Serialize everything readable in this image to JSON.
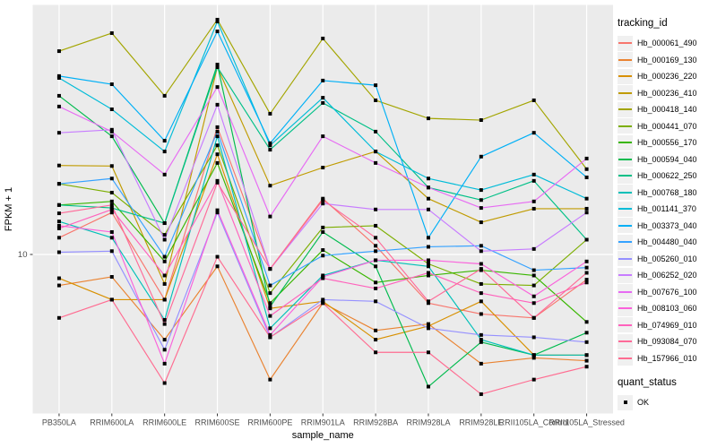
{
  "figure": {
    "panel_bg": "#EBEBEB",
    "grid_color": "#FFFFFF",
    "tick_text_color": "#4D4D4D",
    "axis_title_color": "#000000",
    "point_color": "#000000"
  },
  "axes": {
    "x_title": "sample_name",
    "y_title": "FPKM + 1",
    "y_tick_label": "10"
  },
  "legend": {
    "tracking_title": "tracking_id",
    "quant_title": "quant_status",
    "quant_ok_label": "OK"
  },
  "chart_data": {
    "type": "line",
    "title": "",
    "xlabel": "sample_name",
    "ylabel": "FPKM + 1",
    "y_scale": "log10",
    "y_ticks": [
      10
    ],
    "ylim": [
      2.4,
      95
    ],
    "grid": {
      "vertical": "per-category",
      "horizontal_at": [
        10
      ]
    },
    "legend_position": "right",
    "point_marker": {
      "shape": "square",
      "color": "#000000",
      "legend_label": "OK"
    },
    "categories": [
      "PB350LA",
      "RRIM600LA",
      "RRIM600LE",
      "RRIM600SE",
      "RRIM600PE",
      "RRIM901LA",
      "RRIM928BA",
      "RRIM928LA",
      "RRIM928LE",
      "RRII105LA_Control",
      "RRII105LA_Stressed"
    ],
    "series": [
      {
        "name": "Hb_000061_490",
        "color": "#F8766D",
        "values": [
          11.6,
          14.5,
          6.7,
          30.9,
          8.8,
          16.4,
          10.8,
          6.5,
          5.9,
          5.7,
          8.0
        ]
      },
      {
        "name": "Hb_000169_130",
        "color": "#EA8331",
        "values": [
          7.6,
          8.2,
          4.7,
          9.0,
          3.3,
          6.5,
          5.1,
          5.4,
          3.8,
          4.0,
          3.9
        ]
      },
      {
        "name": "Hb_000236_220",
        "color": "#D89000",
        "values": [
          8.1,
          6.7,
          6.7,
          24.3,
          6.2,
          6.6,
          4.7,
          5.3,
          6.6,
          4.1,
          4.1
        ]
      },
      {
        "name": "Hb_000236_410",
        "color": "#C09B00",
        "values": [
          22.0,
          21.9,
          7.7,
          52.6,
          18.4,
          21.6,
          24.9,
          16.4,
          13.3,
          15.0,
          15.0
        ]
      },
      {
        "name": "Hb_000418_140",
        "color": "#A3A500",
        "values": [
          60.6,
          71.1,
          40.8,
          80.1,
          34.8,
          67.8,
          39.2,
          33.4,
          32.9,
          39.2,
          21.3
        ]
      },
      {
        "name": "Hb_000441_070",
        "color": "#7CAE00",
        "values": [
          18.7,
          17.3,
          11.9,
          26.3,
          7.1,
          12.7,
          12.9,
          9.2,
          7.7,
          7.6,
          11.4
        ]
      },
      {
        "name": "Hb_000556_170",
        "color": "#39B600",
        "values": [
          15.5,
          16.0,
          9.4,
          22.5,
          6.5,
          10.4,
          7.8,
          8.3,
          8.7,
          8.3,
          5.5
        ]
      },
      {
        "name": "Hb_000594_040",
        "color": "#00BB4E",
        "values": [
          40.8,
          28.5,
          13.2,
          53.8,
          6.3,
          12.2,
          9.0,
          3.1,
          4.6,
          4.1,
          5.0
        ]
      },
      {
        "name": "Hb_000622_250",
        "color": "#00C087",
        "values": [
          15.5,
          15.1,
          13.2,
          52.6,
          25.3,
          38.3,
          29.7,
          18.1,
          16.2,
          19.2,
          11.4
        ]
      },
      {
        "name": "Hb_000768_180",
        "color": "#00C0B8",
        "values": [
          13.4,
          11.6,
          5.6,
          28.5,
          5.2,
          8.3,
          9.5,
          9.0,
          4.7,
          4.1,
          4.1
        ]
      },
      {
        "name": "Hb_001141_370",
        "color": "#00BCD8",
        "values": [
          47.8,
          36.2,
          24.9,
          78.8,
          26.3,
          40.1,
          24.9,
          19.6,
          17.7,
          20.3,
          16.4
        ]
      },
      {
        "name": "Hb_003373_040",
        "color": "#00B0F6",
        "values": [
          48.6,
          45.2,
          27.4,
          72.2,
          26.8,
          46.7,
          44.8,
          11.6,
          23.8,
          29.4,
          19.8
        ]
      },
      {
        "name": "Hb_004480_040",
        "color": "#35A2FF",
        "values": [
          18.7,
          19.6,
          9.8,
          29.7,
          7.6,
          9.9,
          10.3,
          10.7,
          10.8,
          8.7,
          8.9
        ]
      },
      {
        "name": "Hb_005260_010",
        "color": "#9590FF",
        "values": [
          10.2,
          10.3,
          4.3,
          14.5,
          4.8,
          6.7,
          6.6,
          5.2,
          4.9,
          4.8,
          4.6
        ]
      },
      {
        "name": "Hb_006252_020",
        "color": "#C77CFF",
        "values": [
          29.4,
          30.2,
          11.4,
          37.7,
          8.8,
          15.7,
          14.9,
          14.9,
          10.3,
          10.5,
          14.5
        ]
      },
      {
        "name": "Hb_007676_100",
        "color": "#E76BF3",
        "values": [
          37.1,
          29.7,
          20.3,
          44.1,
          14.0,
          28.5,
          22.5,
          18.1,
          15.1,
          16.0,
          23.4
        ]
      },
      {
        "name": "Hb_008103_060",
        "color": "#FA62DB",
        "values": [
          12.9,
          12.2,
          3.8,
          14.8,
          4.9,
          8.2,
          9.5,
          9.5,
          9.2,
          6.9,
          9.4
        ]
      },
      {
        "name": "Hb_074969_010",
        "color": "#FF62BC",
        "values": [
          12.6,
          14.9,
          8.3,
          19.2,
          5.8,
          8.1,
          7.4,
          8.5,
          7.1,
          6.5,
          7.8
        ]
      },
      {
        "name": "Hb_093084_070",
        "color": "#FF6A98",
        "values": [
          14.4,
          15.5,
          5.4,
          18.9,
          8.8,
          16.2,
          11.6,
          6.6,
          8.8,
          5.7,
          8.5
        ]
      },
      {
        "name": "Hb_157966_010",
        "color": "#FF6C91",
        "values": [
          5.7,
          6.7,
          3.2,
          9.8,
          4.8,
          6.5,
          4.2,
          4.2,
          2.9,
          3.3,
          3.7
        ]
      }
    ]
  }
}
